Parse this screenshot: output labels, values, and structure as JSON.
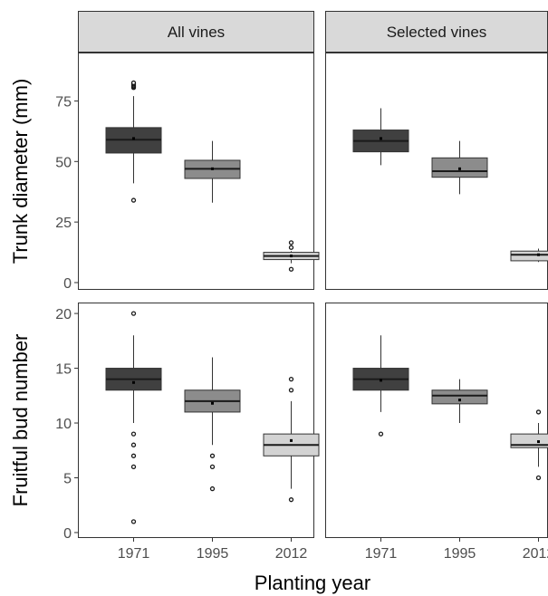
{
  "chart_data": {
    "type": "box",
    "x_label": "Planting year",
    "categories": [
      "1971",
      "1995",
      "2012"
    ],
    "fills": [
      "#404040",
      "#8c8c8c",
      "#d3d3d3"
    ],
    "columns": [
      "All vines",
      "Selected vines"
    ],
    "rows": [
      {
        "y_label": "Trunk diameter (mm)",
        "ylim": [
          -3,
          95
        ],
        "y_ticks": [
          0,
          25,
          50,
          75
        ],
        "panels": [
          {
            "column": "All vines",
            "boxes": [
              {
                "category": "1971",
                "whisker_low": 41,
                "q1": 53.5,
                "median": 59,
                "q3": 64,
                "whisker_high": 77,
                "mean": 59.5,
                "outliers": [
                  34,
                  80.5,
                  81,
                  81.5,
                  82,
                  82.5
                ]
              },
              {
                "category": "1995",
                "whisker_low": 33,
                "q1": 43,
                "median": 47,
                "q3": 50.5,
                "whisker_high": 58.5,
                "mean": 47,
                "outliers": []
              },
              {
                "category": "2012",
                "whisker_low": 8,
                "q1": 9.5,
                "median": 11,
                "q3": 12.5,
                "whisker_high": 13,
                "mean": 11,
                "outliers": [
                  5.5,
                  14.5,
                  16.5
                ]
              }
            ]
          },
          {
            "column": "Selected vines",
            "boxes": [
              {
                "category": "1971",
                "whisker_low": 48.5,
                "q1": 54,
                "median": 58.5,
                "q3": 63,
                "whisker_high": 72,
                "mean": 59.5,
                "outliers": []
              },
              {
                "category": "1995",
                "whisker_low": 36.5,
                "q1": 43.5,
                "median": 46,
                "q3": 51.5,
                "whisker_high": 58.5,
                "mean": 47,
                "outliers": []
              },
              {
                "category": "2012",
                "whisker_low": 8.5,
                "q1": 9,
                "median": 11.5,
                "q3": 13,
                "whisker_high": 14,
                "mean": 11.5,
                "outliers": []
              }
            ]
          }
        ]
      },
      {
        "y_label": "Fruitful bud number",
        "ylim": [
          -0.5,
          21
        ],
        "y_ticks": [
          0,
          5,
          10,
          15,
          20
        ],
        "panels": [
          {
            "column": "All vines",
            "boxes": [
              {
                "category": "1971",
                "whisker_low": 10,
                "q1": 13,
                "median": 14,
                "q3": 15,
                "whisker_high": 18,
                "mean": 13.7,
                "outliers": [
                  1,
                  6,
                  7,
                  8,
                  9,
                  20
                ]
              },
              {
                "category": "1995",
                "whisker_low": 8,
                "q1": 11,
                "median": 12,
                "q3": 13,
                "whisker_high": 16,
                "mean": 11.8,
                "outliers": [
                  4,
                  6,
                  7
                ]
              },
              {
                "category": "2012",
                "whisker_low": 4,
                "q1": 7,
                "median": 8,
                "q3": 9,
                "whisker_high": 12,
                "mean": 8.4,
                "outliers": [
                  3,
                  13,
                  14
                ]
              }
            ]
          },
          {
            "column": "Selected vines",
            "boxes": [
              {
                "category": "1971",
                "whisker_low": 11,
                "q1": 13,
                "median": 14,
                "q3": 15,
                "whisker_high": 18,
                "mean": 13.9,
                "outliers": [
                  9
                ]
              },
              {
                "category": "1995",
                "whisker_low": 10,
                "q1": 11.75,
                "median": 12.5,
                "q3": 13,
                "whisker_high": 14,
                "mean": 12.1,
                "outliers": []
              },
              {
                "category": "2012",
                "whisker_low": 6,
                "q1": 7.75,
                "median": 8,
                "q3": 9,
                "whisker_high": 10,
                "mean": 8.3,
                "outliers": [
                  5,
                  11
                ]
              }
            ]
          }
        ]
      }
    ]
  }
}
